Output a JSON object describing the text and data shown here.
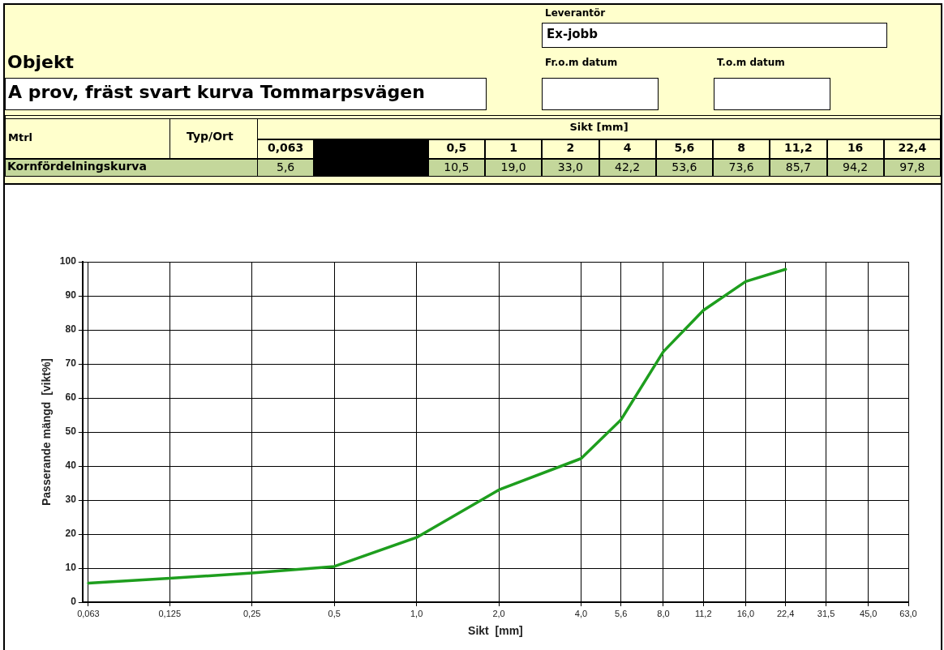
{
  "chart_data": {
    "type": "line",
    "title": "A prov, fräst svart kurva Tommarpsvägen",
    "annotations": [
      "Leverantör",
      "Ex-jobb",
      "Objekt",
      "Fr.o.m datum",
      "T.o.m datum",
      "Mtrl",
      "Typ/Ort",
      "Sikt [mm]",
      "Kornfördelningskurva",
      "0,063",
      "0,5",
      "1",
      "2",
      "4",
      "5,6",
      "8",
      "11,2",
      "16",
      "22,4",
      "5,6",
      "10,5",
      "19,0",
      "33,0",
      "42,2",
      "53,6",
      "73,6",
      "85,7",
      "94,2",
      "97,8"
    ],
    "xlabel": "Sikt  [mm]",
    "ylabel": "Passerande mängd  [vikt%]",
    "x": [
      0.063,
      0.125,
      0.25,
      0.5,
      1,
      2,
      4,
      5.6,
      8,
      11.2,
      16,
      22.4
    ],
    "series": [
      {
        "color": "#1e9e1e",
        "values": [
          5.6,
          7.0,
          8.6,
          10.5,
          19.0,
          33.0,
          42.2,
          53.6,
          73.6,
          85.7,
          94.2,
          97.8
        ]
      }
    ],
    "log": "x",
    "xlim": [
      0.06,
      63
    ],
    "xticks": [
      {
        "value": 0.063,
        "label": "0,063"
      },
      {
        "value": 0.125,
        "label": "0,125"
      },
      {
        "value": 0.25,
        "label": "0,25"
      },
      {
        "value": 0.5,
        "label": "0,5"
      },
      {
        "value": 1,
        "label": "1,0"
      },
      {
        "value": 2,
        "label": "2,0"
      },
      {
        "value": 4,
        "label": "4,0"
      },
      {
        "value": 5.6,
        "label": "5,6"
      },
      {
        "value": 8,
        "label": "8,0"
      },
      {
        "value": 11.2,
        "label": "11,2"
      },
      {
        "value": 16,
        "label": "16,0"
      },
      {
        "value": 22.4,
        "label": "22,4"
      },
      {
        "value": 31.5,
        "label": "31,5"
      },
      {
        "value": 45,
        "label": "45,0"
      },
      {
        "value": 63,
        "label": "63,0"
      }
    ],
    "ylim": [
      0,
      100
    ],
    "yticks": [
      0,
      10,
      20,
      30,
      40,
      50,
      60,
      70,
      80,
      90,
      100
    ],
    "grid": true,
    "marker": "none",
    "line_style": "solid"
  }
}
